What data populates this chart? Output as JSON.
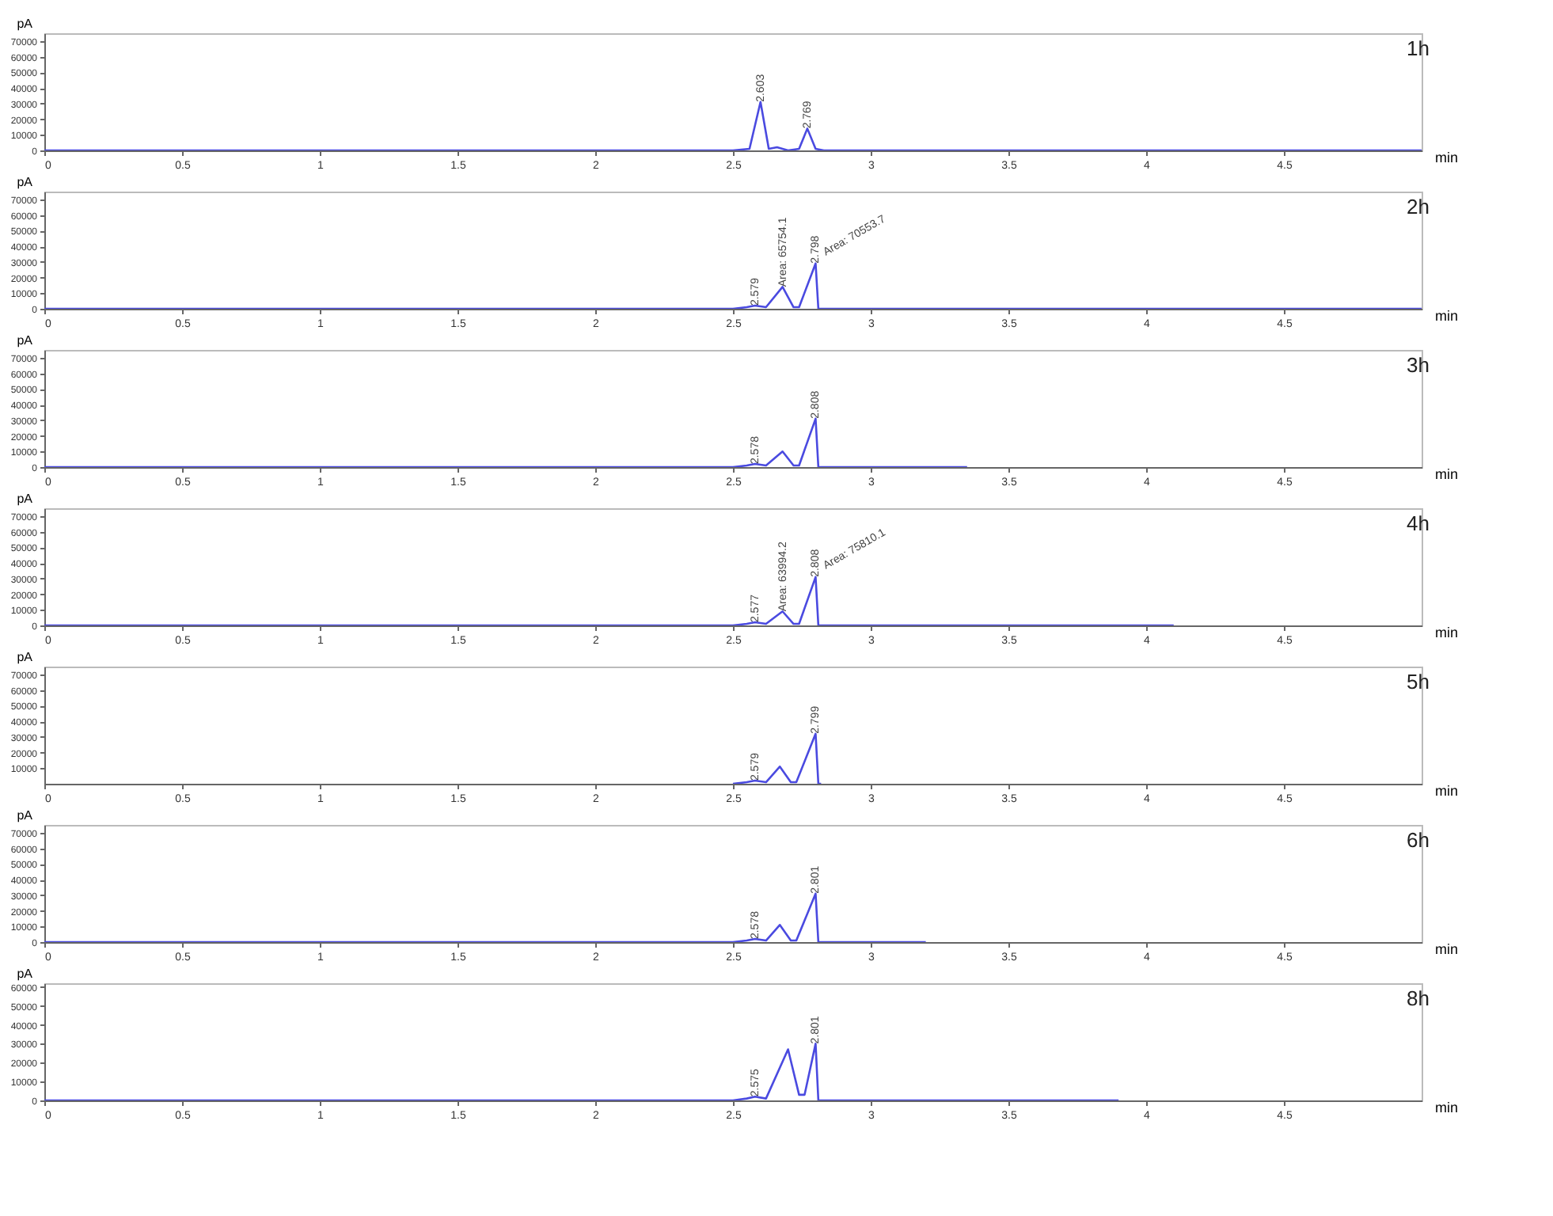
{
  "chart_data": [
    {
      "type": "line",
      "title": "1h",
      "xlabel": "min",
      "ylabel": "pA",
      "xlim": [
        0,
        5
      ],
      "xticks": [
        0,
        0.5,
        1,
        1.5,
        2,
        2.5,
        3,
        3.5,
        4,
        4.5
      ],
      "ylim": [
        0,
        75000
      ],
      "yticks": [
        0,
        10000,
        20000,
        30000,
        40000,
        50000,
        60000,
        70000
      ],
      "grid": false,
      "marker": "none",
      "line_style": "solid",
      "series": [
        {
          "color": "#4a4ae0",
          "x": [
            0,
            2.5,
            2.56,
            2.6,
            2.63,
            2.66,
            2.68,
            2.7,
            2.74,
            2.77,
            2.8,
            2.83,
            5
          ],
          "values": [
            0,
            0,
            1000,
            31000,
            1000,
            2000,
            1000,
            0,
            1000,
            14000,
            1000,
            0,
            0
          ]
        }
      ],
      "annotations": [
        {
          "text": "2.603",
          "x": 2.6,
          "y": 31000
        },
        {
          "text": "2.769",
          "x": 2.77,
          "y": 14000
        }
      ]
    },
    {
      "type": "line",
      "title": "2h",
      "xlabel": "min",
      "ylabel": "pA",
      "xlim": [
        0,
        5
      ],
      "xticks": [
        0,
        0.5,
        1,
        1.5,
        2,
        2.5,
        3,
        3.5,
        4,
        4.5
      ],
      "ylim": [
        0,
        75000
      ],
      "yticks": [
        0,
        10000,
        20000,
        30000,
        40000,
        50000,
        60000,
        70000
      ],
      "grid": false,
      "marker": "none",
      "line_style": "solid",
      "series": [
        {
          "color": "#4a4ae0",
          "x": [
            0,
            2.5,
            2.55,
            2.58,
            2.62,
            2.68,
            2.72,
            2.74,
            2.8,
            2.81,
            2.82,
            5
          ],
          "values": [
            0,
            0,
            1000,
            2000,
            1000,
            14000,
            1000,
            1000,
            29000,
            0,
            0,
            0
          ]
        }
      ],
      "annotations": [
        {
          "text": "2.579",
          "x": 2.58,
          "y": 2000
        },
        {
          "text": "Area: 65754.1",
          "x": 2.68,
          "y": 14000
        },
        {
          "text": "2.798",
          "x": 2.8,
          "y": 29000
        },
        {
          "text": "Area: 70553.7",
          "x": 2.8,
          "y": 29000
        }
      ]
    },
    {
      "type": "line",
      "title": "3h",
      "xlabel": "min",
      "ylabel": "pA",
      "xlim": [
        0,
        5
      ],
      "xticks": [
        0,
        0.5,
        1,
        1.5,
        2,
        2.5,
        3,
        3.5,
        4,
        4.5
      ],
      "ylim": [
        0,
        75000
      ],
      "yticks": [
        0,
        10000,
        20000,
        30000,
        40000,
        50000,
        60000,
        70000
      ],
      "grid": false,
      "marker": "none",
      "line_style": "solid",
      "series": [
        {
          "color": "#4a4ae0",
          "x": [
            0,
            2.5,
            2.55,
            2.58,
            2.62,
            2.68,
            2.72,
            2.74,
            2.8,
            2.81,
            2.82,
            3.35
          ],
          "values": [
            0,
            0,
            1000,
            2000,
            1000,
            10000,
            1000,
            1000,
            31000,
            0,
            0,
            0
          ]
        }
      ],
      "annotations": [
        {
          "text": "2.578",
          "x": 2.58,
          "y": 2000
        },
        {
          "text": "2.808",
          "x": 2.8,
          "y": 31000
        }
      ]
    },
    {
      "type": "line",
      "title": "4h",
      "xlabel": "min",
      "ylabel": "pA",
      "xlim": [
        0,
        5
      ],
      "xticks": [
        0,
        0.5,
        1,
        1.5,
        2,
        2.5,
        3,
        3.5,
        4,
        4.5
      ],
      "ylim": [
        0,
        75000
      ],
      "yticks": [
        0,
        10000,
        20000,
        30000,
        40000,
        50000,
        60000,
        70000
      ],
      "grid": false,
      "marker": "none",
      "line_style": "solid",
      "series": [
        {
          "color": "#4a4ae0",
          "x": [
            0,
            2.5,
            2.55,
            2.58,
            2.62,
            2.68,
            2.72,
            2.74,
            2.8,
            2.81,
            2.82,
            4.1
          ],
          "values": [
            0,
            0,
            1000,
            2000,
            1000,
            9000,
            1000,
            1000,
            31000,
            0,
            0,
            0
          ]
        }
      ],
      "annotations": [
        {
          "text": "2.577",
          "x": 2.58,
          "y": 2000
        },
        {
          "text": "Area: 63994.2",
          "x": 2.68,
          "y": 9000
        },
        {
          "text": "2.808",
          "x": 2.8,
          "y": 31000
        },
        {
          "text": "Area: 75810.1",
          "x": 2.8,
          "y": 31000
        }
      ]
    },
    {
      "type": "line",
      "title": "5h",
      "xlabel": "min",
      "ylabel": "pA",
      "xlim": [
        0,
        5
      ],
      "xticks": [
        0,
        0.5,
        1,
        1.5,
        2,
        2.5,
        3,
        3.5,
        4,
        4.5
      ],
      "ylim": [
        0,
        75000
      ],
      "yticks": [
        10000,
        20000,
        30000,
        40000,
        50000,
        60000,
        70000
      ],
      "grid": false,
      "marker": "none",
      "line_style": "solid",
      "series": [
        {
          "color": "#4a4ae0",
          "x": [
            2.5,
            2.55,
            2.58,
            2.62,
            2.67,
            2.71,
            2.73,
            2.8,
            2.81,
            2.82
          ],
          "values": [
            0,
            1000,
            2000,
            1000,
            11000,
            1000,
            1000,
            32000,
            0,
            0
          ]
        }
      ],
      "annotations": [
        {
          "text": "2.579",
          "x": 2.58,
          "y": 2000
        },
        {
          "text": "2.799",
          "x": 2.8,
          "y": 32000
        }
      ]
    },
    {
      "type": "line",
      "title": "6h",
      "xlabel": "min",
      "ylabel": "pA",
      "xlim": [
        0,
        5
      ],
      "xticks": [
        0,
        0.5,
        1,
        1.5,
        2,
        2.5,
        3,
        3.5,
        4,
        4.5
      ],
      "ylim": [
        0,
        75000
      ],
      "yticks": [
        0,
        10000,
        20000,
        30000,
        40000,
        50000,
        60000,
        70000
      ],
      "grid": false,
      "marker": "none",
      "line_style": "solid",
      "series": [
        {
          "color": "#4a4ae0",
          "x": [
            0,
            2.5,
            2.55,
            2.58,
            2.62,
            2.67,
            2.71,
            2.73,
            2.8,
            2.81,
            2.82,
            3.2
          ],
          "values": [
            0,
            0,
            1000,
            2000,
            1000,
            11000,
            1000,
            1000,
            31000,
            0,
            0,
            0
          ]
        }
      ],
      "annotations": [
        {
          "text": "2.578",
          "x": 2.58,
          "y": 2000
        },
        {
          "text": "2.801",
          "x": 2.8,
          "y": 31000
        }
      ]
    },
    {
      "type": "line",
      "title": "8h",
      "xlabel": "min",
      "ylabel": "pA",
      "xlim": [
        0,
        5
      ],
      "xticks": [
        0,
        0.5,
        1,
        1.5,
        2,
        2.5,
        3,
        3.5,
        4,
        4.5
      ],
      "ylim": [
        0,
        62000
      ],
      "yticks": [
        0,
        10000,
        20000,
        30000,
        40000,
        50000,
        60000
      ],
      "grid": false,
      "marker": "none",
      "line_style": "solid",
      "series": [
        {
          "color": "#4a4ae0",
          "x": [
            0,
            2.5,
            2.55,
            2.58,
            2.62,
            2.7,
            2.74,
            2.76,
            2.8,
            2.81,
            2.82,
            3.9
          ],
          "values": [
            0,
            0,
            1000,
            2000,
            1000,
            27000,
            3000,
            3000,
            30000,
            0,
            0,
            0
          ]
        }
      ],
      "annotations": [
        {
          "text": "2.575",
          "x": 2.58,
          "y": 2000
        },
        {
          "text": "2.801",
          "x": 2.8,
          "y": 30000
        }
      ]
    }
  ]
}
